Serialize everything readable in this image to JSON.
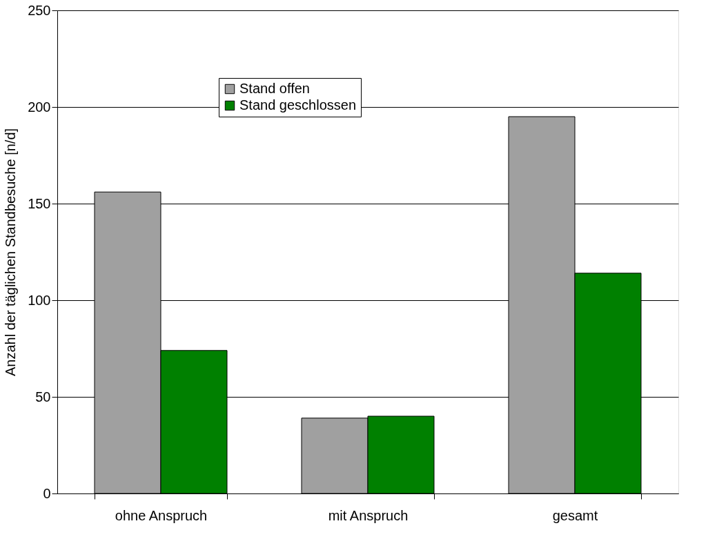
{
  "chart_data": {
    "type": "bar",
    "ylabel": "Anzahl der täglichen Standbesuche [n/d]",
    "categories": [
      "ohne Anspruch",
      "mit Anspruch",
      "gesamt"
    ],
    "series": [
      {
        "name": "Stand offen",
        "color": "#a0a0a0",
        "values": [
          156,
          39,
          195
        ]
      },
      {
        "name": "Stand geschlossen",
        "color": "#008000",
        "values": [
          74,
          40,
          114
        ]
      }
    ],
    "ylim": [
      0,
      250
    ],
    "yticks": [
      0,
      50,
      100,
      150,
      200,
      250
    ],
    "grid": "y",
    "legend": "top"
  }
}
